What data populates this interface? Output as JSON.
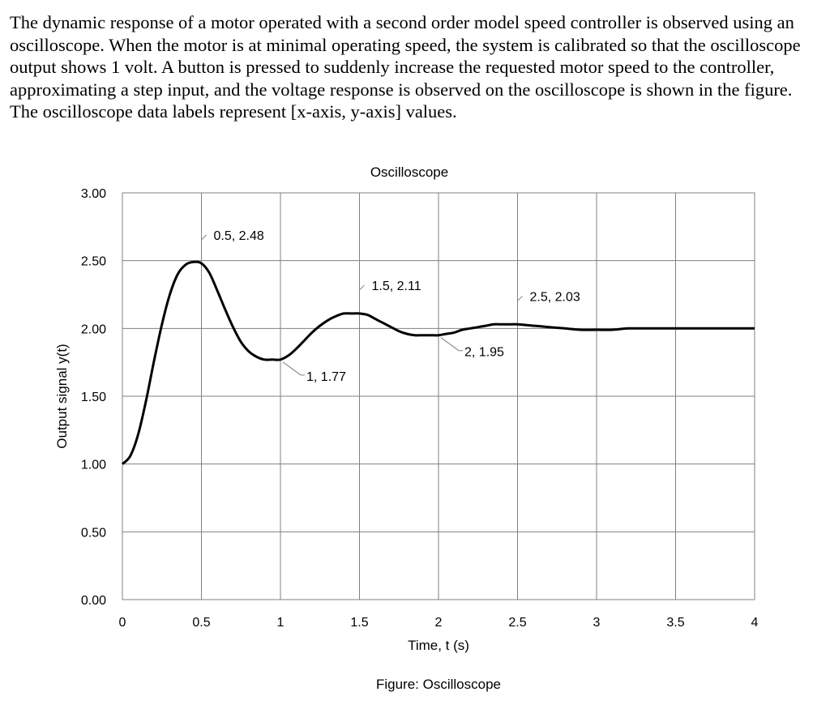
{
  "problem": {
    "text": "The dynamic response of a motor operated with a second order model speed controller is observed using an oscilloscope. When the motor is at minimal operating speed, the system is calibrated so that the oscilloscope output shows 1 volt. A button is pressed to suddenly increase the requested motor speed to the controller, approximating a step input, and the voltage response is observed on the oscilloscope is shown in the figure. The oscilloscope data labels represent [x-axis, y-axis] values."
  },
  "chart_data": {
    "type": "line",
    "title": "Oscilloscope",
    "xlabel": "Time, t (s)",
    "ylabel": "Output signal y(t)",
    "xlim": [
      0,
      4
    ],
    "ylim": [
      0,
      3
    ],
    "x_ticks": [
      "0",
      "0.5",
      "1",
      "1.5",
      "2",
      "2.5",
      "3",
      "3.5",
      "4"
    ],
    "y_ticks": [
      "0.00",
      "0.50",
      "1.00",
      "1.50",
      "2.00",
      "2.50",
      "3.00"
    ],
    "grid": true,
    "legend": "none",
    "series": [
      {
        "color": "#000000",
        "x": [
          0,
          0.05,
          0.1,
          0.15,
          0.2,
          0.25,
          0.3,
          0.35,
          0.4,
          0.45,
          0.5,
          0.55,
          0.6,
          0.65,
          0.7,
          0.75,
          0.8,
          0.85,
          0.9,
          0.95,
          1.0,
          1.05,
          1.1,
          1.15,
          1.2,
          1.25,
          1.3,
          1.35,
          1.4,
          1.45,
          1.5,
          1.55,
          1.6,
          1.65,
          1.7,
          1.75,
          1.8,
          1.85,
          1.9,
          1.95,
          2.0,
          2.05,
          2.1,
          2.15,
          2.2,
          2.25,
          2.3,
          2.35,
          2.4,
          2.45,
          2.5,
          2.6,
          2.7,
          2.8,
          2.9,
          3.0,
          3.1,
          3.2,
          3.3,
          3.4,
          3.5,
          3.6,
          3.7,
          3.8,
          3.9,
          4.0
        ],
        "y": [
          1.0,
          1.06,
          1.22,
          1.47,
          1.76,
          2.03,
          2.25,
          2.4,
          2.47,
          2.49,
          2.48,
          2.41,
          2.28,
          2.14,
          2.01,
          1.9,
          1.83,
          1.79,
          1.77,
          1.77,
          1.77,
          1.8,
          1.85,
          1.91,
          1.97,
          2.02,
          2.06,
          2.09,
          2.11,
          2.11,
          2.11,
          2.1,
          2.07,
          2.04,
          2.01,
          1.98,
          1.96,
          1.95,
          1.95,
          1.95,
          1.95,
          1.96,
          1.97,
          1.99,
          2.0,
          2.01,
          2.02,
          2.03,
          2.03,
          2.03,
          2.03,
          2.02,
          2.01,
          2.0,
          1.99,
          1.99,
          1.99,
          2.0,
          2.0,
          2.0,
          2.0,
          2.0,
          2.0,
          2.0,
          2.0,
          2.0
        ]
      }
    ],
    "annotations": [
      {
        "x": 0.5,
        "y": 2.48,
        "text": "0.5, 2.48",
        "side": "above-right"
      },
      {
        "x": 1.0,
        "y": 1.77,
        "text": "1, 1.77",
        "side": "below-right"
      },
      {
        "x": 1.5,
        "y": 2.11,
        "text": "1.5, 2.11",
        "side": "above-right"
      },
      {
        "x": 2.0,
        "y": 1.95,
        "text": "2, 1.95",
        "side": "below-right"
      },
      {
        "x": 2.5,
        "y": 2.03,
        "text": "2.5, 2.03",
        "side": "above-right"
      }
    ]
  },
  "figure_caption": "Figure: Oscilloscope"
}
